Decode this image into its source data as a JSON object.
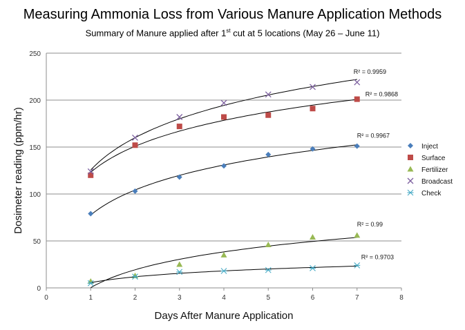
{
  "title": "Measuring Ammonia Loss from Various Manure Application Methods",
  "subtitle_pre": "Summary  of Manure applied after 1",
  "subtitle_sup": "st",
  "subtitle_post": " cut at 5 locations (May 26 – June 11)",
  "chart_data": {
    "type": "scatter",
    "xlabel": "Days After Manure Application",
    "ylabel": "Dosimeter reading (ppm/hr)",
    "xlim": [
      0,
      8
    ],
    "ylim": [
      0,
      250
    ],
    "xticks": [
      0,
      1,
      2,
      3,
      4,
      5,
      6,
      7,
      8
    ],
    "yticks": [
      0,
      50,
      100,
      150,
      200,
      250
    ],
    "grid": "horizontal",
    "legend_position": "right",
    "x": [
      1,
      2,
      3,
      4,
      5,
      6,
      7
    ],
    "series": [
      {
        "name": "Inject",
        "marker": "diamond",
        "color": "#4a7ebb",
        "values": [
          79,
          103,
          118,
          130,
          142,
          148,
          151
        ],
        "trendline": "logarithmic",
        "r2_label": "R² = 0.9967"
      },
      {
        "name": "Surface",
        "marker": "square",
        "color": "#be4b48",
        "values": [
          120,
          152,
          172,
          182,
          184,
          191,
          201
        ],
        "trendline": "logarithmic",
        "r2_label": "R² = 0.9868"
      },
      {
        "name": "Fertilizer",
        "marker": "triangle",
        "color": "#98b954",
        "values": [
          7,
          13,
          25,
          35,
          46,
          54,
          56
        ],
        "trendline": "logarithmic",
        "r2_label": "R² = 0.99"
      },
      {
        "name": "Broadcast",
        "marker": "x",
        "color": "#7d60a0",
        "values": [
          124,
          160,
          182,
          197,
          206,
          214,
          219
        ],
        "trendline": "logarithmic",
        "r2_label": "R² = 0.9959"
      },
      {
        "name": "Check",
        "marker": "star",
        "color": "#46aac5",
        "values": [
          5,
          12,
          17,
          18,
          19,
          21,
          24
        ],
        "trendline": "logarithmic",
        "r2_label": "R² = 0.9703"
      }
    ]
  }
}
